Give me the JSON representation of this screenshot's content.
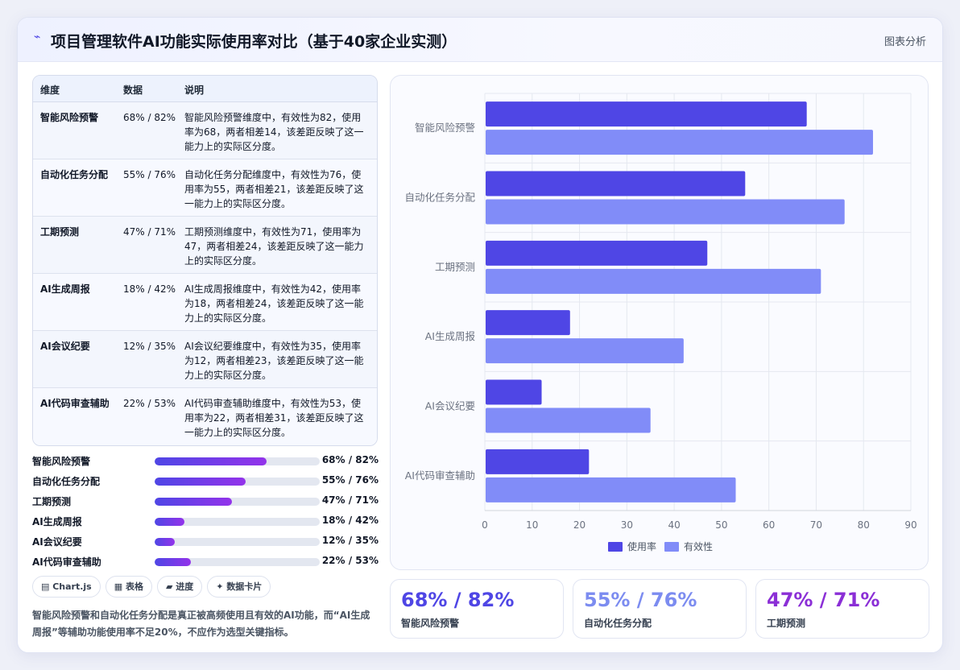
{
  "header": {
    "title": "项目管理软件AI功能实际使用率对比（基于40家企业实测）",
    "right_label": "图表分析"
  },
  "table": {
    "headers": [
      "维度",
      "数据",
      "说明"
    ],
    "rows": [
      {
        "dim": "智能风险预警",
        "data": "68% / 82%",
        "desc": "智能风险预警维度中，有效性为82，使用率为68，两者相差14，该差距反映了这一能力上的实际区分度。"
      },
      {
        "dim": "自动化任务分配",
        "data": "55% / 76%",
        "desc": "自动化任务分配维度中，有效性为76，使用率为55，两者相差21，该差距反映了这一能力上的实际区分度。"
      },
      {
        "dim": "工期预测",
        "data": "47% / 71%",
        "desc": "工期预测维度中，有效性为71，使用率为47，两者相差24，该差距反映了这一能力上的实际区分度。"
      },
      {
        "dim": "AI生成周报",
        "data": "18% / 42%",
        "desc": "AI生成周报维度中，有效性为42，使用率为18，两者相差24，该差距反映了这一能力上的实际区分度。"
      },
      {
        "dim": "AI会议纪要",
        "data": "12% / 35%",
        "desc": "AI会议纪要维度中，有效性为35，使用率为12，两者相差23，该差距反映了这一能力上的实际区分度。"
      },
      {
        "dim": "AI代码审查辅助",
        "data": "22% / 53%",
        "desc": "AI代码审查辅助维度中，有效性为53，使用率为22，两者相差31，该差距反映了这一能力上的实际区分度。"
      }
    ]
  },
  "progress": [
    {
      "label": "智能风险预警",
      "value_text": "68% / 82%",
      "fraction": 0.68
    },
    {
      "label": "自动化任务分配",
      "value_text": "55% / 76%",
      "fraction": 0.55
    },
    {
      "label": "工期预测",
      "value_text": "47% / 71%",
      "fraction": 0.47
    },
    {
      "label": "AI生成周报",
      "value_text": "18% / 42%",
      "fraction": 0.18
    },
    {
      "label": "AI会议纪要",
      "value_text": "12% / 35%",
      "fraction": 0.12
    },
    {
      "label": "AI代码审查辅助",
      "value_text": "22% / 53%",
      "fraction": 0.22
    }
  ],
  "tags": [
    "▤ Chart.js",
    "▦ 表格",
    "▰ 进度",
    "✦ 数据卡片"
  ],
  "conclusion": "智能风险预警和自动化任务分配是真正被高频使用且有效的AI功能，而“AI生成周报”等辅助功能使用率不足20%，不应作为选型关键指标。",
  "kpis": [
    {
      "value": "68% / 82%",
      "label": "智能风险预警",
      "color": "#4f46e5"
    },
    {
      "value": "55% / 76%",
      "label": "自动化任务分配",
      "color": "#7c8cf0"
    },
    {
      "value": "47% / 71%",
      "label": "工期预测",
      "color": "#8b2fd6"
    }
  ],
  "colors": {
    "usage": "#4f46e5",
    "effectiveness": "#818cf8",
    "accent": "#4f46e5"
  },
  "chart_data": {
    "type": "bar",
    "orientation": "horizontal",
    "categories": [
      "智能风险预警",
      "自动化任务分配",
      "工期预测",
      "AI生成周报",
      "AI会议纪要",
      "AI代码审查辅助"
    ],
    "series": [
      {
        "name": "使用率",
        "values": [
          68,
          55,
          47,
          18,
          12,
          22
        ],
        "color": "#4f46e5"
      },
      {
        "name": "有效性",
        "values": [
          82,
          76,
          71,
          42,
          35,
          53
        ],
        "color": "#818cf8"
      }
    ],
    "xlim": [
      0,
      90
    ],
    "xticks": [
      0,
      10,
      20,
      30,
      40,
      50,
      60,
      70,
      80,
      90
    ],
    "grid": true,
    "legend": "bottom"
  }
}
